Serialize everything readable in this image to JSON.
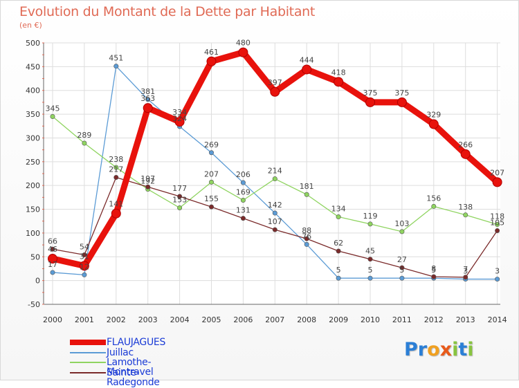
{
  "chart_data": {
    "type": "line",
    "title": "Evolution du Montant de la Dette par Habitant",
    "subtitle": "(en €)",
    "categories": [
      "2000",
      "2001",
      "2002",
      "2003",
      "2004",
      "2005",
      "2006",
      "2007",
      "2008",
      "2009",
      "2010",
      "2011",
      "2012",
      "2013",
      "2014"
    ],
    "ylim": [
      -50,
      500
    ],
    "y_ticks": [
      "-50",
      "0",
      "50",
      "100",
      "150",
      "200",
      "250",
      "300",
      "350",
      "400",
      "450",
      "500"
    ],
    "grid": true,
    "legend_position": "bottom-left",
    "series": [
      {
        "name": "FLAUJAGUES",
        "color": "#e8120c",
        "values": [
          46,
          31,
          141,
          363,
          334,
          461,
          480,
          397,
          444,
          418,
          375,
          375,
          329,
          266,
          207
        ],
        "labels": [
          "46",
          "31",
          "141",
          "363",
          "334",
          "461",
          "480",
          "397",
          "444",
          "418",
          "375",
          "375",
          "329",
          "266",
          "207"
        ]
      },
      {
        "name": "Juillac",
        "color": "#5b9bd5",
        "values": [
          17,
          12,
          451,
          381,
          324,
          269,
          206,
          142,
          76,
          5,
          5,
          5,
          5,
          3,
          3
        ],
        "labels": [
          "17",
          "12",
          "451",
          "381",
          "324",
          "269",
          "206",
          "142",
          "76",
          "5",
          "5",
          "5",
          "5",
          "3",
          "3"
        ]
      },
      {
        "name": "Lamothe-Montravel",
        "color": "#8fd460",
        "values": [
          345,
          289,
          238,
          192,
          153,
          207,
          169,
          214,
          181,
          134,
          119,
          103,
          156,
          138,
          118
        ],
        "labels": [
          "345",
          "289",
          "238",
          "192",
          "153",
          "207",
          "169",
          "214",
          "181",
          "134",
          "119",
          "103",
          "156",
          "138",
          "118"
        ]
      },
      {
        "name": "Sainte-Radegonde",
        "color": "#7a2a2a",
        "values": [
          66,
          54,
          217,
          197,
          177,
          155,
          131,
          107,
          88,
          62,
          45,
          27,
          8,
          7,
          105
        ],
        "labels": [
          "66",
          "54",
          "217",
          "197",
          "177",
          "155",
          "131",
          "107",
          "88",
          "62",
          "45",
          "27",
          "8",
          "7",
          "105"
        ]
      }
    ]
  },
  "logo": {
    "text": "Proxiti",
    "letters": [
      {
        "ch": "P",
        "color": "#2b7fd6"
      },
      {
        "ch": "r",
        "color": "#2b7fd6"
      },
      {
        "ch": "o",
        "color": "#f0a020"
      },
      {
        "ch": "x",
        "color": "#e85a1a"
      },
      {
        "ch": "i",
        "color": "#88c440"
      },
      {
        "ch": "t",
        "color": "#2b7fd6"
      },
      {
        "ch": "i",
        "color": "#88c440"
      }
    ]
  }
}
